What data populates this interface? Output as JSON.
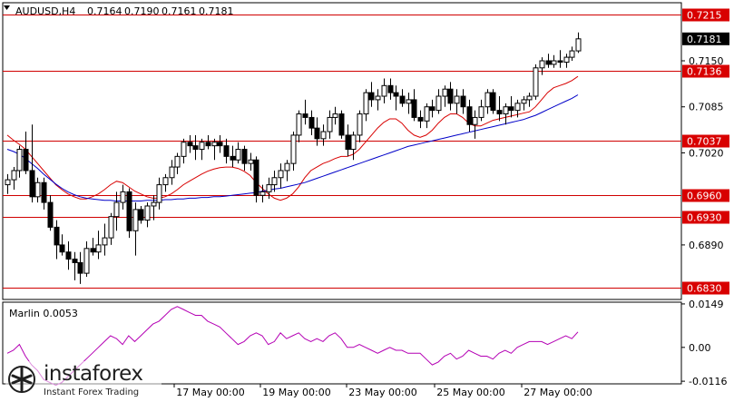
{
  "chart_data": {
    "type": "candlestick",
    "symbol_label": "AUDUSD,H4",
    "ohlc_header": [
      "0.7164",
      "0.7190",
      "0.7161",
      "0.7181"
    ],
    "last_price": "0.7181",
    "ylim": [
      0.6813,
      0.7232
    ],
    "y_ticks": [
      "0.7150",
      "0.7085",
      "0.7020",
      "0.6890"
    ],
    "x_ticks": [
      "17 May 00:00",
      "19 May 00:00",
      "23 May 00:00",
      "25 May 00:00",
      "27 May 00:00"
    ],
    "levels": [
      {
        "price": 0.7215,
        "label": "0.7215"
      },
      {
        "price": 0.7136,
        "label": "0.7136"
      },
      {
        "price": 0.7037,
        "label": "0.7037"
      },
      {
        "price": 0.696,
        "label": "0.6960"
      },
      {
        "price": 0.693,
        "label": "0.6930"
      },
      {
        "price": 0.683,
        "label": "0.6830"
      }
    ],
    "candles": [
      [
        0.6975,
        0.699,
        0.6962,
        0.6982
      ],
      [
        0.6982,
        0.7,
        0.6968,
        0.6995
      ],
      [
        0.6995,
        0.703,
        0.6985,
        0.7025
      ],
      [
        0.7025,
        0.705,
        0.699,
        0.6995
      ],
      [
        0.6995,
        0.706,
        0.695,
        0.6958
      ],
      [
        0.6958,
        0.6985,
        0.695,
        0.6978
      ],
      [
        0.6978,
        0.6985,
        0.694,
        0.695
      ],
      [
        0.695,
        0.696,
        0.691,
        0.6915
      ],
      [
        0.6915,
        0.6925,
        0.687,
        0.689
      ],
      [
        0.689,
        0.6905,
        0.6875,
        0.688
      ],
      [
        0.688,
        0.6895,
        0.6855,
        0.687
      ],
      [
        0.687,
        0.688,
        0.684,
        0.6865
      ],
      [
        0.6865,
        0.688,
        0.6835,
        0.685
      ],
      [
        0.685,
        0.6895,
        0.6845,
        0.6885
      ],
      [
        0.6885,
        0.69,
        0.6875,
        0.688
      ],
      [
        0.688,
        0.691,
        0.687,
        0.689
      ],
      [
        0.689,
        0.692,
        0.6875,
        0.69
      ],
      [
        0.69,
        0.6935,
        0.689,
        0.693
      ],
      [
        0.693,
        0.6965,
        0.691,
        0.695
      ],
      [
        0.695,
        0.6975,
        0.694,
        0.6965
      ],
      [
        0.6965,
        0.697,
        0.69,
        0.691
      ],
      [
        0.691,
        0.695,
        0.6875,
        0.694
      ],
      [
        0.694,
        0.6945,
        0.692,
        0.6925
      ],
      [
        0.6925,
        0.695,
        0.6915,
        0.6945
      ],
      [
        0.6945,
        0.696,
        0.6925,
        0.695
      ],
      [
        0.695,
        0.6985,
        0.694,
        0.6975
      ],
      [
        0.6975,
        0.699,
        0.6965,
        0.6985
      ],
      [
        0.6985,
        0.701,
        0.6975,
        0.7
      ],
      [
        0.7,
        0.702,
        0.699,
        0.7015
      ],
      [
        0.7015,
        0.704,
        0.7005,
        0.7035
      ],
      [
        0.7035,
        0.7045,
        0.702,
        0.703
      ],
      [
        0.703,
        0.7045,
        0.701,
        0.7025
      ],
      [
        0.7025,
        0.704,
        0.701,
        0.7035
      ],
      [
        0.7035,
        0.7045,
        0.7025,
        0.703
      ],
      [
        0.703,
        0.704,
        0.701,
        0.7035
      ],
      [
        0.7035,
        0.7045,
        0.702,
        0.703
      ],
      [
        0.703,
        0.704,
        0.7005,
        0.7015
      ],
      [
        0.7015,
        0.703,
        0.7,
        0.701
      ],
      [
        0.701,
        0.7035,
        0.7005,
        0.7025
      ],
      [
        0.7025,
        0.703,
        0.6995,
        0.7005
      ],
      [
        0.7005,
        0.702,
        0.6995,
        0.701
      ],
      [
        0.701,
        0.7015,
        0.695,
        0.696
      ],
      [
        0.696,
        0.6975,
        0.695,
        0.6965
      ],
      [
        0.6965,
        0.6985,
        0.6955,
        0.6975
      ],
      [
        0.6975,
        0.6995,
        0.6965,
        0.6985
      ],
      [
        0.6985,
        0.7005,
        0.697,
        0.6995
      ],
      [
        0.6995,
        0.701,
        0.698,
        0.7005
      ],
      [
        0.7005,
        0.705,
        0.6995,
        0.7045
      ],
      [
        0.7045,
        0.708,
        0.7035,
        0.7075
      ],
      [
        0.7075,
        0.7095,
        0.706,
        0.707
      ],
      [
        0.707,
        0.708,
        0.7045,
        0.7055
      ],
      [
        0.7055,
        0.707,
        0.703,
        0.704
      ],
      [
        0.704,
        0.706,
        0.703,
        0.705
      ],
      [
        0.705,
        0.708,
        0.704,
        0.707
      ],
      [
        0.707,
        0.7085,
        0.706,
        0.7075
      ],
      [
        0.7075,
        0.708,
        0.704,
        0.7045
      ],
      [
        0.7045,
        0.706,
        0.7015,
        0.7025
      ],
      [
        0.7025,
        0.705,
        0.701,
        0.7045
      ],
      [
        0.7045,
        0.708,
        0.7035,
        0.7075
      ],
      [
        0.7075,
        0.711,
        0.7065,
        0.7105
      ],
      [
        0.7105,
        0.712,
        0.7085,
        0.7095
      ],
      [
        0.7095,
        0.711,
        0.708,
        0.71
      ],
      [
        0.71,
        0.7125,
        0.709,
        0.7115
      ],
      [
        0.7115,
        0.7125,
        0.7095,
        0.7105
      ],
      [
        0.7105,
        0.7115,
        0.708,
        0.71
      ],
      [
        0.71,
        0.711,
        0.7085,
        0.709
      ],
      [
        0.709,
        0.7105,
        0.7075,
        0.7095
      ],
      [
        0.7095,
        0.711,
        0.7065,
        0.707
      ],
      [
        0.707,
        0.708,
        0.7055,
        0.7065
      ],
      [
        0.7065,
        0.709,
        0.7055,
        0.7085
      ],
      [
        0.7085,
        0.7095,
        0.707,
        0.708
      ],
      [
        0.708,
        0.711,
        0.7075,
        0.71
      ],
      [
        0.71,
        0.7115,
        0.7085,
        0.711
      ],
      [
        0.711,
        0.712,
        0.708,
        0.709
      ],
      [
        0.709,
        0.711,
        0.7075,
        0.71
      ],
      [
        0.71,
        0.711,
        0.7075,
        0.7085
      ],
      [
        0.7085,
        0.7095,
        0.705,
        0.706
      ],
      [
        0.706,
        0.708,
        0.704,
        0.707
      ],
      [
        0.707,
        0.7095,
        0.7065,
        0.7085
      ],
      [
        0.7085,
        0.711,
        0.7075,
        0.7105
      ],
      [
        0.7105,
        0.711,
        0.7075,
        0.708
      ],
      [
        0.708,
        0.71,
        0.7065,
        0.7075
      ],
      [
        0.7075,
        0.709,
        0.706,
        0.7085
      ],
      [
        0.7085,
        0.71,
        0.707,
        0.708
      ],
      [
        0.708,
        0.7095,
        0.707,
        0.709
      ],
      [
        0.709,
        0.71,
        0.708,
        0.7095
      ],
      [
        0.7095,
        0.7105,
        0.7085,
        0.71
      ],
      [
        0.71,
        0.7145,
        0.7095,
        0.714
      ],
      [
        0.714,
        0.7155,
        0.713,
        0.715
      ],
      [
        0.715,
        0.716,
        0.714,
        0.7145
      ],
      [
        0.7145,
        0.7158,
        0.714,
        0.715
      ],
      [
        0.715,
        0.7165,
        0.714,
        0.7148
      ],
      [
        0.7148,
        0.716,
        0.714,
        0.7155
      ],
      [
        0.7155,
        0.717,
        0.715,
        0.7164
      ],
      [
        0.7164,
        0.719,
        0.7161,
        0.7181
      ]
    ],
    "series": [
      {
        "name": "",
        "color": "#d80000",
        "values": [
          0.7045,
          0.7038,
          0.7032,
          0.7025,
          0.7015,
          0.7005,
          0.6995,
          0.6985,
          0.6975,
          0.6968,
          0.6962,
          0.6958,
          0.6955,
          0.6955,
          0.6958,
          0.6962,
          0.6968,
          0.6975,
          0.698,
          0.6978,
          0.6972,
          0.6966,
          0.6962,
          0.6958,
          0.6956,
          0.6956,
          0.6958,
          0.6962,
          0.6968,
          0.6975,
          0.698,
          0.6985,
          0.699,
          0.6994,
          0.6997,
          0.6999,
          0.7,
          0.7,
          0.6998,
          0.6994,
          0.6988,
          0.6978,
          0.697,
          0.6962,
          0.6956,
          0.6953,
          0.6956,
          0.6962,
          0.6972,
          0.6985,
          0.6995,
          0.7,
          0.7005,
          0.7008,
          0.7012,
          0.7015,
          0.7015,
          0.7018,
          0.7025,
          0.7035,
          0.7045,
          0.7055,
          0.7063,
          0.7068,
          0.7068,
          0.7062,
          0.7052,
          0.7045,
          0.7042,
          0.7045,
          0.7052,
          0.7062,
          0.707,
          0.7075,
          0.7075,
          0.707,
          0.7062,
          0.7058,
          0.7058,
          0.7062,
          0.7066,
          0.7068,
          0.707,
          0.7072,
          0.7074,
          0.7076,
          0.7078,
          0.7085,
          0.7095,
          0.7105,
          0.7112,
          0.7115,
          0.7118,
          0.7122,
          0.7128
        ]
      },
      {
        "name": "",
        "color": "#0000c8",
        "values": [
          0.7025,
          0.7022,
          0.7018,
          0.7012,
          0.7005,
          0.6998,
          0.699,
          0.6983,
          0.6976,
          0.697,
          0.6965,
          0.6961,
          0.6958,
          0.6956,
          0.6955,
          0.6954,
          0.6953,
          0.6953,
          0.6952,
          0.6952,
          0.6952,
          0.6952,
          0.6952,
          0.6953,
          0.6953,
          0.6953,
          0.6954,
          0.6954,
          0.6955,
          0.6955,
          0.6956,
          0.6956,
          0.6957,
          0.6957,
          0.6958,
          0.6958,
          0.6959,
          0.696,
          0.6961,
          0.6962,
          0.6963,
          0.6964,
          0.6966,
          0.6967,
          0.6969,
          0.697,
          0.6972,
          0.6974,
          0.6976,
          0.6978,
          0.6981,
          0.6984,
          0.6987,
          0.699,
          0.6993,
          0.6996,
          0.6999,
          0.7002,
          0.7005,
          0.7008,
          0.7011,
          0.7014,
          0.7017,
          0.702,
          0.7023,
          0.7026,
          0.7029,
          0.7031,
          0.7033,
          0.7035,
          0.7037,
          0.7039,
          0.7041,
          0.7043,
          0.7045,
          0.7047,
          0.7049,
          0.7051,
          0.7053,
          0.7055,
          0.7057,
          0.7059,
          0.7061,
          0.7063,
          0.7065,
          0.7067,
          0.707,
          0.7073,
          0.7077,
          0.7081,
          0.7085,
          0.7089,
          0.7093,
          0.7097,
          0.7102
        ]
      }
    ],
    "indicator": {
      "label": "Marlin 0.0053",
      "ylim": [
        -0.0125,
        0.0155
      ],
      "y_ticks": [
        "0.0149",
        "0.00",
        "-0.0116"
      ],
      "color": "#b400b4",
      "values": [
        -0.002,
        -0.001,
        0.001,
        -0.003,
        -0.006,
        -0.008,
        -0.011,
        -0.012,
        -0.013,
        -0.012,
        -0.01,
        -0.008,
        -0.006,
        -0.004,
        -0.002,
        0.0,
        0.002,
        0.004,
        0.003,
        0.001,
        0.004,
        0.002,
        0.004,
        0.006,
        0.008,
        0.009,
        0.011,
        0.013,
        0.014,
        0.013,
        0.012,
        0.011,
        0.011,
        0.009,
        0.008,
        0.007,
        0.005,
        0.003,
        0.001,
        0.002,
        0.004,
        0.005,
        0.004,
        0.001,
        0.002,
        0.005,
        0.003,
        0.004,
        0.005,
        0.003,
        0.002,
        0.003,
        0.002,
        0.004,
        0.005,
        0.003,
        0.0,
        0.0,
        0.001,
        0.0,
        -0.001,
        -0.002,
        -0.001,
        0.0,
        -0.001,
        -0.001,
        -0.002,
        -0.002,
        -0.002,
        -0.004,
        -0.006,
        -0.005,
        -0.003,
        -0.002,
        -0.004,
        -0.003,
        -0.001,
        -0.002,
        -0.003,
        -0.003,
        -0.004,
        -0.002,
        -0.001,
        -0.002,
        0.0,
        0.001,
        0.002,
        0.002,
        0.002,
        0.001,
        0.002,
        0.003,
        0.004,
        0.003,
        0.0053
      ]
    }
  },
  "watermark": {
    "brand": "instaforex",
    "tagline": "Instant Forex Trading"
  }
}
